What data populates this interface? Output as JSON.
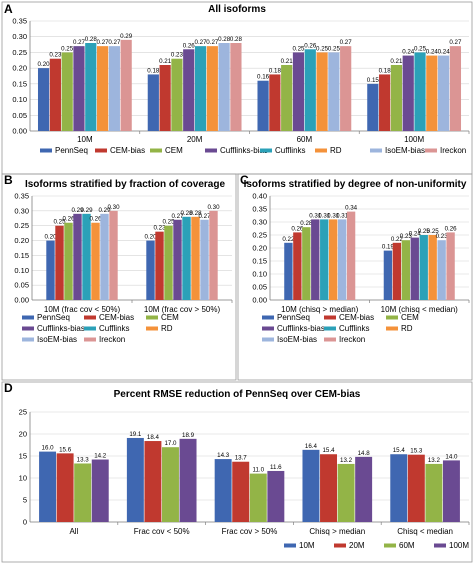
{
  "figure": {
    "panel_letters": [
      "A",
      "B",
      "C",
      "D"
    ]
  },
  "chart_data": [
    {
      "panel": "A",
      "type": "bar",
      "title": "All isoforms",
      "categories": [
        "10M",
        "20M",
        "60M",
        "100M"
      ],
      "ylim": [
        0,
        0.35
      ],
      "yticks": [
        "0.00",
        "0.05",
        "0.10",
        "0.15",
        "0.20",
        "0.25",
        "0.30",
        "0.35"
      ],
      "legend_position": "bottom",
      "series": [
        {
          "name": "PennSeq",
          "color": "#3F67B1",
          "values": [
            0.2,
            0.18,
            0.16,
            0.15
          ],
          "labels": [
            "0.20",
            "0.18",
            "0.16",
            "0.15"
          ]
        },
        {
          "name": "CEM-bias",
          "color": "#C0392F",
          "values": [
            0.23,
            0.21,
            0.18,
            0.18
          ],
          "labels": [
            "0.23",
            "0.21",
            "0.18",
            "0.18"
          ]
        },
        {
          "name": "CEM",
          "color": "#93B447",
          "values": [
            0.25,
            0.23,
            0.21,
            0.21
          ],
          "labels": [
            "0.25",
            "0.23",
            "0.21",
            "0.21"
          ]
        },
        {
          "name": "Cufflinks-bias",
          "color": "#6A4A92",
          "values": [
            0.27,
            0.26,
            0.25,
            0.24
          ],
          "labels": [
            "0.27",
            "0.26",
            "0.25",
            "0.24"
          ]
        },
        {
          "name": "Cufflinks",
          "color": "#2BA1B8",
          "values": [
            0.28,
            0.27,
            0.26,
            0.25
          ],
          "labels": [
            "0.28",
            "0.27",
            "0.26",
            "0.25"
          ]
        },
        {
          "name": "RD",
          "color": "#F4923A",
          "values": [
            0.27,
            0.27,
            0.25,
            0.24
          ],
          "labels": [
            "0.27",
            "0.27",
            "0.25",
            "0.24"
          ]
        },
        {
          "name": "IsoEM-bias",
          "color": "#9DB5DD",
          "values": [
            0.27,
            0.28,
            0.25,
            0.24
          ],
          "labels": [
            "0.27",
            "0.28",
            "0.25",
            "0.24"
          ]
        },
        {
          "name": "Ireckon",
          "color": "#DB9594",
          "values": [
            0.29,
            0.28,
            0.27,
            0.27
          ],
          "labels": [
            "0.29",
            "0.28",
            "0.27",
            "0.27"
          ]
        }
      ]
    },
    {
      "panel": "B",
      "type": "bar",
      "title": "Isoforms stratified by fraction of coverage",
      "categories": [
        "10M (frac cov < 50%)",
        "10M (frac cov > 50%)"
      ],
      "ylim": [
        0,
        0.35
      ],
      "yticks": [
        "0.00",
        "0.05",
        "0.10",
        "0.15",
        "0.20",
        "0.25",
        "0.30",
        "0.35"
      ],
      "legend_position": "bottom",
      "series": [
        {
          "name": "PennSeq",
          "color": "#3F67B1",
          "values": [
            0.2,
            0.2
          ],
          "labels": [
            "0.20",
            "0.20"
          ]
        },
        {
          "name": "CEM-bias",
          "color": "#C0392F",
          "values": [
            0.25,
            0.23
          ],
          "labels": [
            "0.25",
            "0.23"
          ]
        },
        {
          "name": "CEM",
          "color": "#93B447",
          "values": [
            0.26,
            0.25
          ],
          "labels": [
            "0.26",
            "0.25"
          ]
        },
        {
          "name": "Cufflinks-bias",
          "color": "#6A4A92",
          "values": [
            0.29,
            0.27
          ],
          "labels": [
            "0.29",
            "0.27"
          ]
        },
        {
          "name": "Cufflinks",
          "color": "#2BA1B8",
          "values": [
            0.29,
            0.28
          ],
          "labels": [
            "0.29",
            "0.28"
          ]
        },
        {
          "name": "RD",
          "color": "#F4923A",
          "values": [
            0.26,
            0.28
          ],
          "labels": [
            "0.26",
            "0.28"
          ]
        },
        {
          "name": "IsoEM-bias",
          "color": "#9DB5DD",
          "values": [
            0.29,
            0.27
          ],
          "labels": [
            "0.29",
            "0.27"
          ]
        },
        {
          "name": "Ireckon",
          "color": "#DB9594",
          "values": [
            0.3,
            0.3
          ],
          "labels": [
            "0.30",
            "0.30"
          ]
        }
      ]
    },
    {
      "panel": "C",
      "type": "bar",
      "title": "Isoforms stratified by degree of non-uniformity",
      "categories": [
        "10M (chisq > median)",
        "10M (chisq < median)"
      ],
      "ylim": [
        0,
        0.4
      ],
      "yticks": [
        "0.00",
        "0.05",
        "0.10",
        "0.15",
        "0.20",
        "0.25",
        "0.30",
        "0.35",
        "0.40"
      ],
      "legend_position": "bottom",
      "series": [
        {
          "name": "PennSeq",
          "color": "#3F67B1",
          "values": [
            0.22,
            0.19
          ],
          "labels": [
            "0.22",
            "0.19"
          ]
        },
        {
          "name": "CEM-bias",
          "color": "#C0392F",
          "values": [
            0.26,
            0.22
          ],
          "labels": [
            "0.26",
            "0.22"
          ]
        },
        {
          "name": "CEM",
          "color": "#93B447",
          "values": [
            0.28,
            0.23
          ],
          "labels": [
            "0.28",
            "0.23"
          ]
        },
        {
          "name": "Cufflinks-bias",
          "color": "#6A4A92",
          "values": [
            0.31,
            0.24
          ],
          "labels": [
            "0.31",
            "0.24"
          ]
        },
        {
          "name": "Cufflinks",
          "color": "#2BA1B8",
          "values": [
            0.31,
            0.25
          ],
          "labels": [
            "0.31",
            "0.25"
          ]
        },
        {
          "name": "RD",
          "color": "#F4923A",
          "values": [
            0.31,
            0.25
          ],
          "labels": [
            "0.31",
            "0.25"
          ]
        },
        {
          "name": "IsoEM-bias",
          "color": "#9DB5DD",
          "values": [
            0.31,
            0.23
          ],
          "labels": [
            "0.31",
            "0.23"
          ]
        },
        {
          "name": "Ireckon",
          "color": "#DB9594",
          "values": [
            0.34,
            0.26
          ],
          "labels": [
            "0.34",
            "0.26"
          ]
        }
      ]
    },
    {
      "panel": "D",
      "type": "bar",
      "title": "Percent RMSE reduction of PennSeq over CEM-bias",
      "categories": [
        "All",
        "Frac cov < 50%",
        "Frac cov > 50%",
        "Chisq > median",
        "Chisq < median"
      ],
      "ylim": [
        0,
        25
      ],
      "yticks": [
        "0",
        "5",
        "10",
        "15",
        "20",
        "25"
      ],
      "legend_position": "bottom",
      "series": [
        {
          "name": "10M",
          "color": "#3F67B1",
          "values": [
            16.0,
            19.1,
            14.3,
            16.4,
            15.4
          ],
          "labels": [
            "16.0",
            "19.1",
            "14.3",
            "16.4",
            "15.4"
          ]
        },
        {
          "name": "20M",
          "color": "#C0392F",
          "values": [
            15.6,
            18.4,
            13.7,
            15.4,
            15.3
          ],
          "labels": [
            "15.6",
            "18.4",
            "13.7",
            "15.4",
            "15.3"
          ]
        },
        {
          "name": "60M",
          "color": "#93B447",
          "values": [
            13.3,
            17.0,
            11.0,
            13.2,
            13.2
          ],
          "labels": [
            "13.3",
            "17.0",
            "11.0",
            "13.2",
            "13.2"
          ]
        },
        {
          "name": "100M",
          "color": "#6A4A92",
          "values": [
            14.2,
            18.9,
            11.6,
            14.8,
            14.0
          ],
          "labels": [
            "14.2",
            "18.9",
            "11.6",
            "14.8",
            "14.0"
          ]
        }
      ]
    }
  ]
}
